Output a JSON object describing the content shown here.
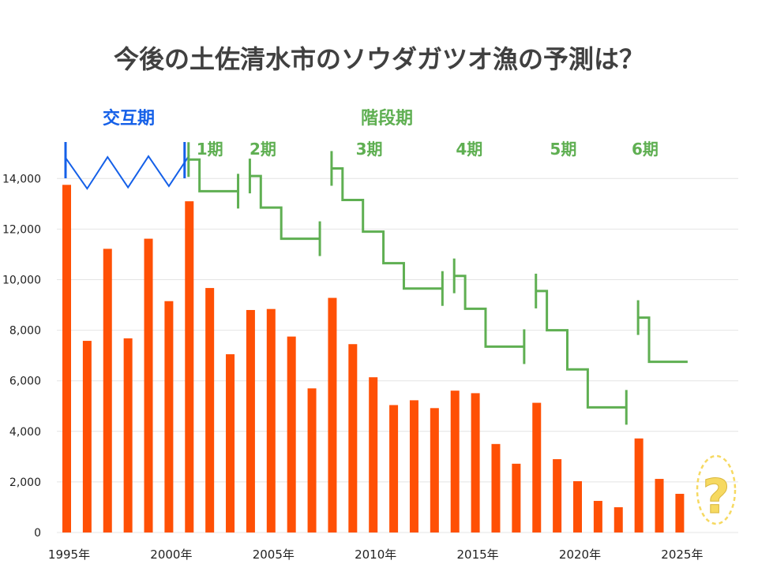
{
  "chart_data": {
    "type": "bar",
    "title": "今後の土佐清水市のソウダガツオ漁の予測は？",
    "x": [
      1995,
      1996,
      1997,
      1998,
      1999,
      2000,
      2001,
      2002,
      2003,
      2004,
      2005,
      2006,
      2007,
      2008,
      2009,
      2010,
      2011,
      2012,
      2013,
      2014,
      2015,
      2016,
      2017,
      2018,
      2019,
      2020,
      2021,
      2022,
      2023,
      2024,
      2025
    ],
    "values": [
      13750,
      7580,
      11220,
      7680,
      11620,
      9150,
      13100,
      9670,
      7050,
      8800,
      8840,
      7750,
      5700,
      9280,
      7450,
      6140,
      5040,
      5230,
      4920,
      5610,
      5510,
      3500,
      2720,
      5130,
      2900,
      2030,
      1250,
      1000,
      3720,
      2120,
      1530
    ],
    "ylim": [
      0,
      15500
    ],
    "yticks": [
      0,
      2000,
      4000,
      6000,
      8000,
      10000,
      12000,
      14000
    ],
    "ytick_labels": [
      "0",
      "2,000",
      "4,000",
      "6,000",
      "8,000",
      "10,000",
      "12,000",
      "14,000"
    ],
    "xtick_labels": [
      "1995年",
      "2000年",
      "2005年",
      "2010年",
      "2015年",
      "2020年",
      "2025年"
    ],
    "xtick_years": [
      1995,
      2000,
      2005,
      2010,
      2015,
      2020,
      2025
    ],
    "grid": true,
    "question_mark": "?",
    "annotations": {
      "alternating_label": "交互期",
      "stepped_label": "階段期",
      "periods": [
        {
          "label": "1期",
          "label_year": 2002.0,
          "start": 2001,
          "end": 2003,
          "values": [
            14750,
            13500
          ]
        },
        {
          "label": "2期",
          "label_year": 2004.6,
          "start": 2004,
          "end": 2007,
          "values": [
            14100,
            12850,
            11620
          ]
        },
        {
          "label": "3期",
          "label_year": 2009.8,
          "start": 2008,
          "end": 2013,
          "values": [
            14400,
            13150,
            11900,
            10650,
            9650
          ]
        },
        {
          "label": "4期",
          "label_year": 2014.7,
          "start": 2014,
          "end": 2017,
          "values": [
            10150,
            8850,
            7350
          ]
        },
        {
          "label": "5期",
          "label_year": 2019.3,
          "start": 2018,
          "end": 2022,
          "values": [
            9550,
            8000,
            6450,
            4950
          ]
        },
        {
          "label": "6期",
          "label_year": 2023.3,
          "start": 2023,
          "end": 2025,
          "values": [
            8500,
            6750
          ]
        }
      ]
    },
    "colors": {
      "bar": "#FF5005",
      "alternating": "#1560E8",
      "stepped": "#5FAF52",
      "grid": "#E4E4E4",
      "question": "#F6D961"
    }
  }
}
